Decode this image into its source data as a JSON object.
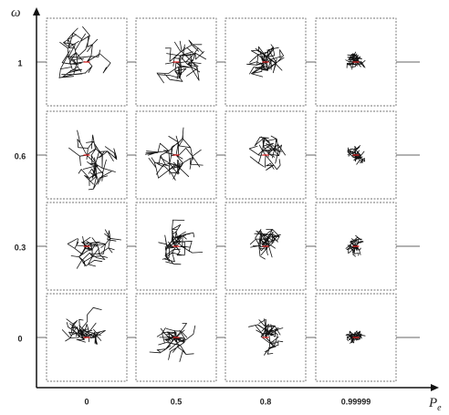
{
  "x_axis": {
    "label": {
      "main": "P",
      "sub": "e"
    },
    "ticks": [
      "0",
      "0.5",
      "0.8",
      "0.99999"
    ]
  },
  "y_axis": {
    "label": "ω",
    "ticks": [
      "1",
      "0.6",
      "0.3",
      "0"
    ]
  }
}
